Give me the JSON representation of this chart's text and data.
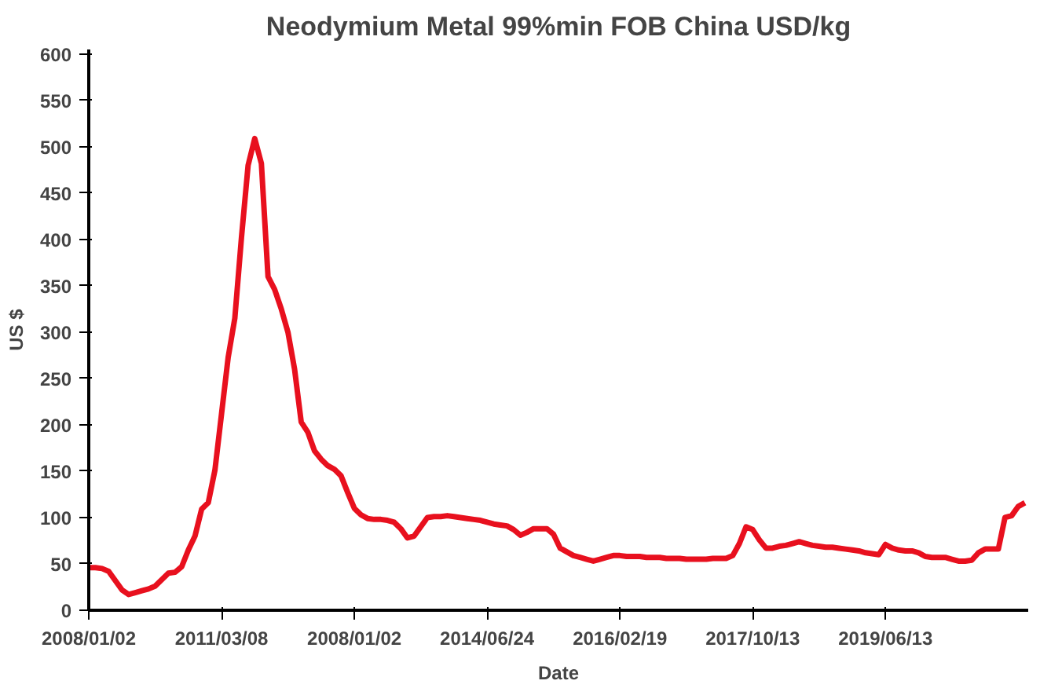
{
  "chart_data": {
    "type": "line",
    "title": "Neodymium Metal 99%min FOB China USD/kg",
    "xlabel": "Date",
    "ylabel": "US $",
    "categories": [
      "2008/01/02",
      null,
      null,
      null,
      null,
      null,
      null,
      null,
      null,
      null,
      null,
      null,
      null,
      null,
      null,
      null,
      null,
      null,
      null,
      null,
      "2011/03/08",
      null,
      null,
      null,
      null,
      null,
      null,
      null,
      null,
      null,
      null,
      null,
      null,
      null,
      null,
      null,
      null,
      null,
      null,
      null,
      "2008/01/02",
      null,
      null,
      null,
      null,
      null,
      null,
      null,
      null,
      null,
      null,
      null,
      null,
      null,
      null,
      null,
      null,
      null,
      null,
      null,
      "2014/06/24",
      null,
      null,
      null,
      null,
      null,
      null,
      null,
      null,
      null,
      null,
      null,
      null,
      null,
      null,
      null,
      null,
      null,
      null,
      null,
      "2016/02/19",
      null,
      null,
      null,
      null,
      null,
      null,
      null,
      null,
      null,
      null,
      null,
      null,
      null,
      null,
      null,
      null,
      null,
      null,
      null,
      "2017/10/13",
      null,
      null,
      null,
      null,
      null,
      null,
      null,
      null,
      null,
      null,
      null,
      null,
      null,
      null,
      null,
      null,
      null,
      null,
      null,
      "2019/06/13",
      null,
      null,
      null,
      null,
      null,
      null,
      null,
      null,
      null,
      null,
      null,
      null,
      null,
      null,
      null,
      null,
      null,
      null,
      null,
      null,
      null
    ],
    "series": [
      {
        "color": "#e8101e",
        "values": [
          46,
          46,
          45,
          42,
          32,
          22,
          17,
          19,
          21,
          23,
          26,
          33,
          40,
          41,
          47,
          65,
          80,
          109,
          116,
          151,
          212,
          273,
          315,
          402,
          480,
          509,
          482,
          360,
          346,
          325,
          300,
          260,
          203,
          192,
          172,
          163,
          156,
          152,
          145,
          127,
          110,
          103,
          99,
          98,
          98,
          97,
          95,
          88,
          78,
          80,
          90,
          100,
          101,
          101,
          102,
          101,
          100,
          99,
          98,
          97,
          95,
          93,
          92,
          91,
          87,
          81,
          84,
          88,
          88,
          88,
          82,
          67,
          63,
          59,
          57,
          55,
          53,
          55,
          57,
          59,
          59,
          58,
          58,
          58,
          57,
          57,
          57,
          56,
          56,
          56,
          55,
          55,
          55,
          55,
          56,
          56,
          56,
          59,
          72,
          90,
          87,
          76,
          67,
          67,
          69,
          70,
          72,
          74,
          72,
          70,
          69,
          68,
          68,
          67,
          66,
          65,
          64,
          62,
          61,
          60,
          71,
          67,
          65,
          64,
          64,
          62,
          58,
          57,
          57,
          57,
          55,
          53,
          53,
          54,
          62,
          66,
          66,
          66,
          100,
          102,
          112,
          116
        ]
      }
    ],
    "ylim": [
      0,
      605
    ],
    "yticks": [
      0,
      50,
      100,
      150,
      200,
      250,
      300,
      350,
      400,
      450,
      500,
      550,
      600
    ],
    "grid": false,
    "marker": "none",
    "line_style": "solid"
  }
}
